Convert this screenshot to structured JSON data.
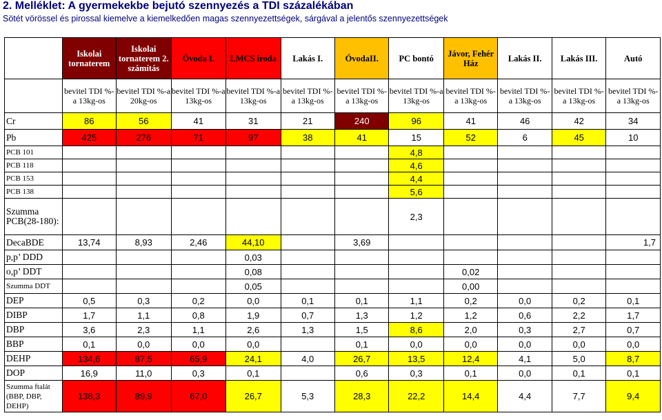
{
  "heading": {
    "title": "2. Melléklet: A gyermekekbe bejutó szennyezés a TDI százalékában",
    "subtitle": "Sötét vörössel és pirossal kiemelve a kiemelkedően magas szennyezettségek, sárgával a jelentős szennyezettségek"
  },
  "colors": {
    "dark_red": "#800000",
    "red": "#ff0000",
    "yellow": "#ffff00",
    "orange": "#ffc000"
  },
  "columns": [
    {
      "name": "Iskolai tornaterem",
      "basis": "bevitel TDI %-a 13kg-os",
      "fill": "dark_red"
    },
    {
      "name": "Iskolai tornaterem 2. számítás",
      "basis": "bevitel TDI %-a 20kg-os",
      "fill": "dark_red"
    },
    {
      "name": "Óvoda I.",
      "basis": "bevitel TDI %-a 13kg-os",
      "fill": "red"
    },
    {
      "name": "LMCS iroda",
      "basis": "bevitel TDI %-a 13kg-os",
      "fill": "red"
    },
    {
      "name": "Lakás I.",
      "basis": "bevitel TDI %-a 13kg-os",
      "fill": "none"
    },
    {
      "name": "ÓvodaII.",
      "basis": "bevitel TDI %-a 13kg-os",
      "fill": "orange"
    },
    {
      "name": "PC bontó",
      "basis": "bevitel TDI %-a 13kg-os",
      "fill": "none"
    },
    {
      "name": "Jávor, Fehér Ház",
      "basis": "bevitel TDI %-a 13kg-os",
      "fill": "orange"
    },
    {
      "name": "Lakás II.",
      "basis": "bevitel TDI %-a 13kg-os",
      "fill": "none"
    },
    {
      "name": "Lakás III.",
      "basis": "bevitel TDI %-a 13kg-os",
      "fill": "none"
    },
    {
      "name": "Autó",
      "basis": "bevitel TDI %-a 13kg-os",
      "fill": "none"
    }
  ],
  "rows": {
    "cr": {
      "label": "Cr",
      "values": [
        "86",
        "56",
        "41",
        "31",
        "21",
        "240",
        "96",
        "41",
        "46",
        "42",
        "34"
      ]
    },
    "pb": {
      "label": "Pb",
      "values": [
        "425",
        "276",
        "71",
        "97",
        "38",
        "41",
        "15",
        "52",
        "6",
        "45",
        "10"
      ]
    },
    "pcb101": {
      "label": "PCB 101",
      "value": "4,8"
    },
    "pcb118": {
      "label": "PCB 118",
      "value": "4,6"
    },
    "pcb153": {
      "label": "PCB 153",
      "value": "4,4"
    },
    "pcb138": {
      "label": "PCB 138",
      "value": "5,6"
    },
    "pcbsum": {
      "label": "Szumma PCB(28-180):",
      "value": "2,3"
    },
    "decabde": {
      "label": "DecaBDE",
      "values": [
        "13,74",
        "8,93",
        "2,46",
        "44,10",
        "3,69",
        "1,7"
      ]
    },
    "ddd": {
      "label": "p,p’ DDD",
      "value": "0,03"
    },
    "ddt": {
      "label": "o,p’ DDT",
      "values": [
        "0,08",
        "0,02"
      ]
    },
    "ddtsum": {
      "label": "Szumma DDT",
      "values": [
        "0,05",
        "0,00"
      ]
    },
    "dep": {
      "label": "DEP",
      "values": [
        "0,5",
        "0,3",
        "0,2",
        "0,0",
        "0,1",
        "0,1",
        "1,1",
        "0,2",
        "0,0",
        "0,2",
        "0,1"
      ]
    },
    "dibp": {
      "label": "DIBP",
      "values": [
        "1,7",
        "1,1",
        "0,8",
        "1,9",
        "0,7",
        "1,3",
        "1,2",
        "1,2",
        "0,6",
        "2,2",
        "1,7"
      ]
    },
    "dbp": {
      "label": "DBP",
      "values": [
        "3,6",
        "2,3",
        "1,1",
        "2,6",
        "1,3",
        "1,5",
        "8,6",
        "2,0",
        "0,3",
        "2,7",
        "0,7"
      ]
    },
    "bbp": {
      "label": "BBP",
      "values": [
        "0,1",
        "0,0",
        "0,0",
        "0,0",
        "",
        "0,1",
        "0,0",
        "0,0",
        "0,0",
        "0,0",
        "0,0"
      ]
    },
    "dehp": {
      "label": "DEHP",
      "values": [
        "134,6",
        "87,5",
        "65,9",
        "24,1",
        "4,0",
        "26,7",
        "13,5",
        "12,4",
        "4,1",
        "5,0",
        "8,7"
      ]
    },
    "dop": {
      "label": "DOP",
      "values": [
        "16,9",
        "11,0",
        "0,3",
        "0,1",
        "",
        "0,6",
        "0,3",
        "0,1",
        "0,0",
        "0,1",
        "0,1"
      ]
    },
    "ftalat": {
      "label": "Szumma ftalát (BBP, DBP, DEHP)",
      "values": [
        "138,3",
        "89,9",
        "67,0",
        "26,7",
        "5,3",
        "28,3",
        "22,2",
        "14,4",
        "4,4",
        "7,7",
        "9,4"
      ]
    }
  }
}
